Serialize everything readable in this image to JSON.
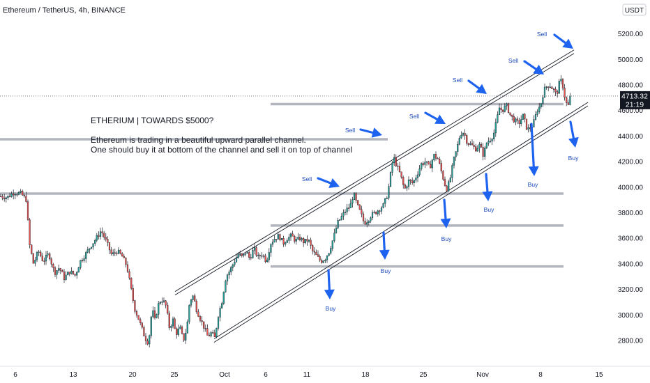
{
  "header": {
    "symbol": "Ethereum / TetherUS, 4h, BINANCE",
    "currency": "USDT"
  },
  "price_label": {
    "price": "4713.32",
    "countdown": "21:19"
  },
  "annotation": {
    "title": "ETHERIUM | TOWARDS $5000?",
    "line1": "Ethereum is trading in a beautiful upward parallel channel.",
    "line2": "One should buy it at bottom of the channel and sell it on top of channel"
  },
  "colors": {
    "bull": "#26a69a",
    "bear": "#ef5350",
    "arrow": "#1e63f0",
    "level": "#b2b5be",
    "channel": "#131722"
  },
  "chart_data": {
    "type": "candlestick",
    "title": "Ethereum / TetherUS, 4h, BINANCE",
    "ylabel": "USDT",
    "ylim": [
      2600,
      5200
    ],
    "y_ticks": [
      "2800.00",
      "3000.00",
      "3200.00",
      "3400.00",
      "3600.00",
      "3800.00",
      "4000.00",
      "4200.00",
      "4400.00",
      "4600.00",
      "4800.00",
      "5000.00",
      "5200.00"
    ],
    "x_ticks": [
      "6",
      "13",
      "20",
      "25",
      "Oct",
      "6",
      "11",
      "18",
      "25",
      "Nov",
      "8",
      "15"
    ],
    "current_price": 4713.32,
    "price_path": [
      [
        0,
        3930
      ],
      [
        10,
        3920
      ],
      [
        20,
        3960
      ],
      [
        30,
        3950
      ],
      [
        38,
        3900
      ],
      [
        42,
        3560
      ],
      [
        48,
        3400
      ],
      [
        55,
        3500
      ],
      [
        62,
        3420
      ],
      [
        70,
        3480
      ],
      [
        78,
        3330
      ],
      [
        85,
        3370
      ],
      [
        92,
        3290
      ],
      [
        100,
        3340
      ],
      [
        108,
        3310
      ],
      [
        115,
        3420
      ],
      [
        122,
        3470
      ],
      [
        130,
        3540
      ],
      [
        138,
        3600
      ],
      [
        145,
        3660
      ],
      [
        152,
        3580
      ],
      [
        160,
        3470
      ],
      [
        168,
        3500
      ],
      [
        175,
        3460
      ],
      [
        182,
        3380
      ],
      [
        188,
        3200
      ],
      [
        193,
        3050
      ],
      [
        198,
        2980
      ],
      [
        203,
        2900
      ],
      [
        208,
        2820
      ],
      [
        213,
        2780
      ],
      [
        218,
        3050
      ],
      [
        222,
        2960
      ],
      [
        228,
        3100
      ],
      [
        233,
        3120
      ],
      [
        238,
        3070
      ],
      [
        243,
        2900
      ],
      [
        248,
        2960
      ],
      [
        252,
        2850
      ],
      [
        258,
        2900
      ],
      [
        263,
        2800
      ],
      [
        268,
        2900
      ],
      [
        272,
        3110
      ],
      [
        277,
        3150
      ],
      [
        282,
        3040
      ],
      [
        288,
        2960
      ],
      [
        293,
        2900
      ],
      [
        298,
        2830
      ],
      [
        303,
        2860
      ],
      [
        308,
        2820
      ],
      [
        313,
        3000
      ],
      [
        318,
        3100
      ],
      [
        324,
        3300
      ],
      [
        330,
        3350
      ],
      [
        336,
        3420
      ],
      [
        342,
        3480
      ],
      [
        348,
        3450
      ],
      [
        353,
        3500
      ],
      [
        358,
        3440
      ],
      [
        364,
        3520
      ],
      [
        370,
        3450
      ],
      [
        376,
        3480
      ],
      [
        382,
        3420
      ],
      [
        388,
        3560
      ],
      [
        394,
        3600
      ],
      [
        400,
        3620
      ],
      [
        406,
        3560
      ],
      [
        412,
        3600
      ],
      [
        418,
        3620
      ],
      [
        424,
        3580
      ],
      [
        430,
        3600
      ],
      [
        436,
        3570
      ],
      [
        442,
        3590
      ],
      [
        448,
        3500
      ],
      [
        454,
        3460
      ],
      [
        460,
        3420
      ],
      [
        466,
        3440
      ],
      [
        472,
        3500
      ],
      [
        478,
        3600
      ],
      [
        484,
        3720
      ],
      [
        490,
        3770
      ],
      [
        496,
        3820
      ],
      [
        502,
        3850
      ],
      [
        507,
        3950
      ],
      [
        512,
        3860
      ],
      [
        517,
        3800
      ],
      [
        522,
        3720
      ],
      [
        527,
        3740
      ],
      [
        532,
        3780
      ],
      [
        538,
        3800
      ],
      [
        544,
        3830
      ],
      [
        550,
        3860
      ],
      [
        556,
        3950
      ],
      [
        560,
        4100
      ],
      [
        564,
        4240
      ],
      [
        568,
        4180
      ],
      [
        574,
        4100
      ],
      [
        580,
        3980
      ],
      [
        586,
        4050
      ],
      [
        592,
        4030
      ],
      [
        598,
        4100
      ],
      [
        604,
        4180
      ],
      [
        610,
        4200
      ],
      [
        616,
        4150
      ],
      [
        622,
        4250
      ],
      [
        628,
        4220
      ],
      [
        634,
        4100
      ],
      [
        640,
        3980
      ],
      [
        645,
        4050
      ],
      [
        650,
        4200
      ],
      [
        655,
        4300
      ],
      [
        660,
        4420
      ],
      [
        665,
        4430
      ],
      [
        670,
        4350
      ],
      [
        676,
        4330
      ],
      [
        682,
        4300
      ],
      [
        688,
        4330
      ],
      [
        693,
        4250
      ],
      [
        698,
        4350
      ],
      [
        704,
        4380
      ],
      [
        708,
        4420
      ],
      [
        712,
        4520
      ],
      [
        716,
        4620
      ],
      [
        720,
        4600
      ],
      [
        726,
        4640
      ],
      [
        732,
        4560
      ],
      [
        738,
        4520
      ],
      [
        744,
        4500
      ],
      [
        750,
        4560
      ],
      [
        756,
        4450
      ],
      [
        762,
        4470
      ],
      [
        766,
        4520
      ],
      [
        770,
        4600
      ],
      [
        775,
        4640
      ],
      [
        780,
        4760
      ],
      [
        784,
        4790
      ],
      [
        788,
        4800
      ],
      [
        794,
        4760
      ],
      [
        798,
        4720
      ],
      [
        803,
        4840
      ],
      [
        806,
        4820
      ],
      [
        810,
        4700
      ],
      [
        814,
        4620
      ],
      [
        818,
        4713
      ]
    ],
    "channel": {
      "upper": [
        [
          251,
          3170
        ],
        [
          823,
          5060
        ]
      ],
      "lower": [
        [
          307,
          2800
        ],
        [
          843,
          4650
        ]
      ]
    },
    "horizontal_levels": [
      3950,
      4375,
      4650,
      3700,
      3380
    ],
    "annotations": [
      {
        "label": "Sell",
        "price": 5200
      },
      {
        "label": "Sell",
        "price": 4990
      },
      {
        "label": "Sell",
        "price": 4830
      },
      {
        "label": "Sell",
        "price": 4580
      },
      {
        "label": "Sell",
        "price": 4420
      },
      {
        "label": "Sell",
        "price": 4050
      },
      {
        "label": "Buy",
        "price": 4220
      },
      {
        "label": "Buy",
        "price": 4000
      },
      {
        "label": "Buy",
        "price": 3860
      },
      {
        "label": "Buy",
        "price": 3550
      },
      {
        "label": "Buy",
        "price": 3350
      },
      {
        "label": "Buy",
        "price": 3030
      }
    ]
  }
}
